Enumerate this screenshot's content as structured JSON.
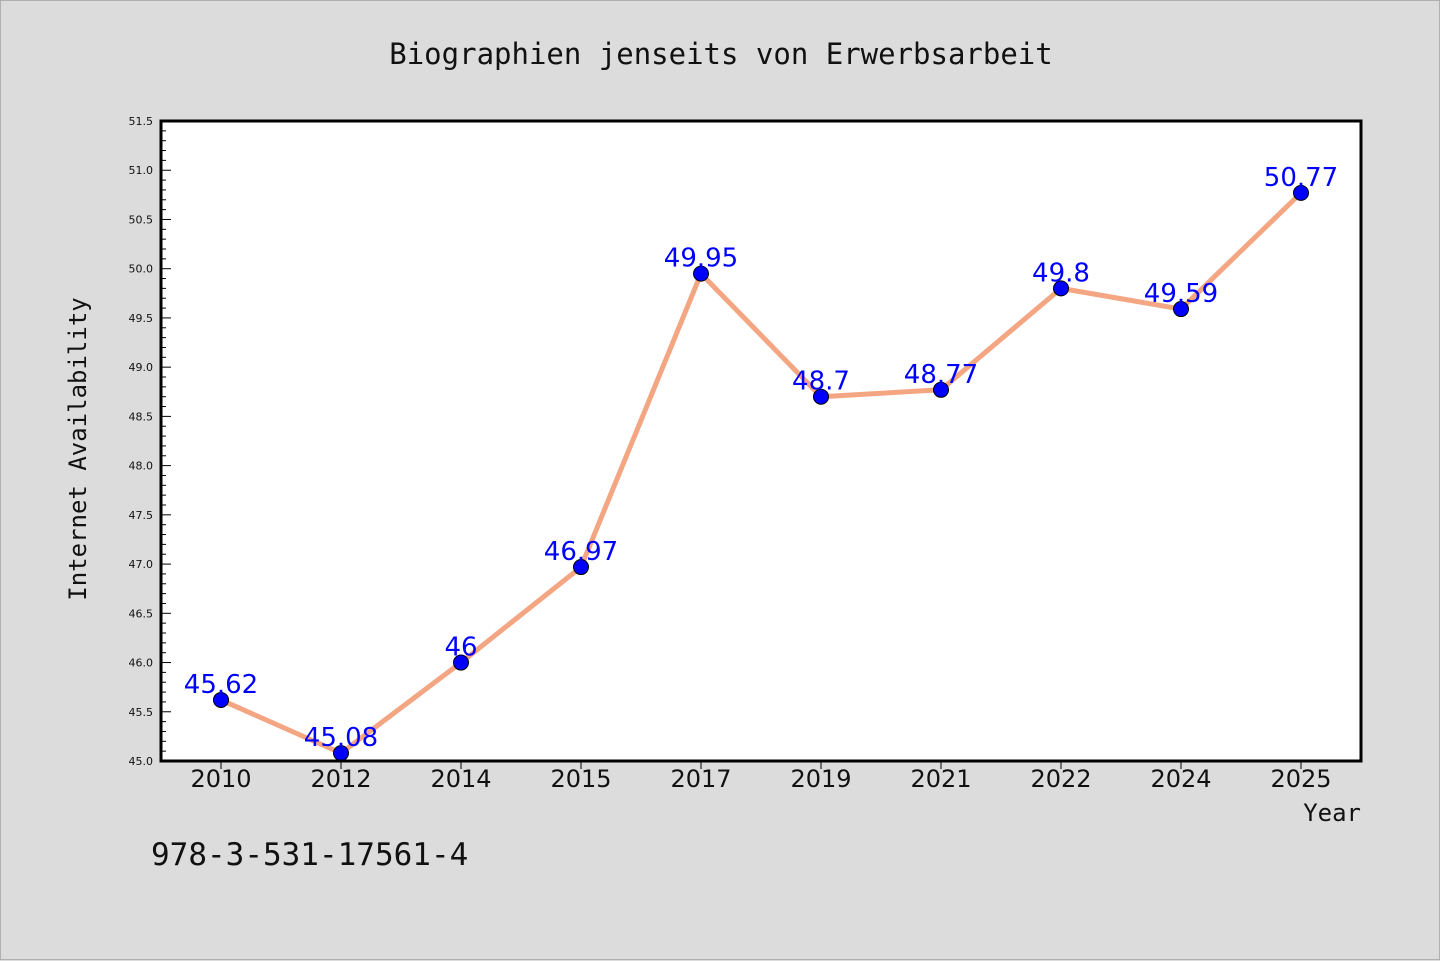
{
  "chart_data": {
    "type": "line",
    "title": "Biographien jenseits von Erwerbsarbeit",
    "xlabel": "Year",
    "ylabel": "Internet Availability",
    "categories": [
      "2010",
      "2012",
      "2014",
      "2015",
      "2017",
      "2019",
      "2021",
      "2022",
      "2024",
      "2025"
    ],
    "series": [
      {
        "values": [
          45.62,
          45.08,
          46,
          46.97,
          49.95,
          48.7,
          48.77,
          49.8,
          49.59,
          50.77
        ],
        "data_labels": [
          "45.62",
          "45.08",
          "46",
          "46.97",
          "49.95",
          "48.7",
          "48.77",
          "49.8",
          "49.59",
          "50.77"
        ]
      }
    ],
    "ylim": [
      45.0,
      51.5
    ],
    "yticks": [
      "45.0",
      "45.5",
      "46.0",
      "46.5",
      "47.0",
      "47.5",
      "48.0",
      "48.5",
      "49.0",
      "49.5",
      "50.0",
      "50.5",
      "51.0",
      "51.5"
    ],
    "grid": false,
    "colors": {
      "line": "#f4a582",
      "marker": "#0000ff",
      "label": "#0000ff",
      "plot_bg": "#ffffff",
      "page_bg": "#dcdcdc"
    }
  },
  "footer": {
    "isbn": "978-3-531-17561-4"
  }
}
